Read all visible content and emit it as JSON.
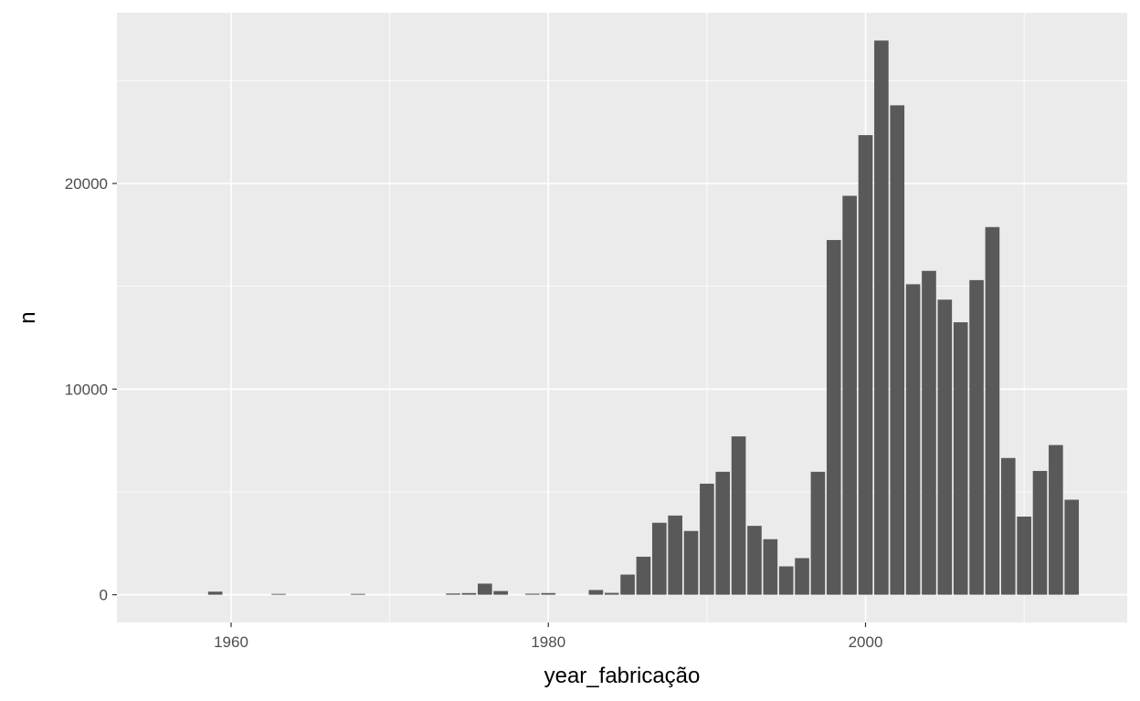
{
  "chart_data": {
    "type": "bar",
    "xlabel": "year_fabricação",
    "ylabel": "n",
    "xlim": [
      1952.8,
      2016.5
    ],
    "ylim": [
      -1350,
      28300
    ],
    "x_ticks": [
      1960,
      1980,
      2000
    ],
    "x_tick_labels": [
      "1960",
      "1980",
      "2000"
    ],
    "y_ticks": [
      0,
      10000,
      20000
    ],
    "y_tick_labels": [
      "0",
      "10000",
      "20000"
    ],
    "x_minor_ticks": [
      1970,
      1990,
      2010
    ],
    "y_minor_ticks": [
      5000,
      15000,
      25000
    ],
    "grid": true,
    "colors": {
      "bar": "#595959",
      "panel": "#ebebeb",
      "grid": "#ffffff"
    },
    "bars": [
      {
        "x": 1959,
        "y": 150
      },
      {
        "x": 1963,
        "y": 40
      },
      {
        "x": 1968,
        "y": 40
      },
      {
        "x": 1974,
        "y": 60
      },
      {
        "x": 1975,
        "y": 80
      },
      {
        "x": 1976,
        "y": 540
      },
      {
        "x": 1977,
        "y": 180
      },
      {
        "x": 1979,
        "y": 50
      },
      {
        "x": 1980,
        "y": 80
      },
      {
        "x": 1983,
        "y": 230
      },
      {
        "x": 1984,
        "y": 90
      },
      {
        "x": 1985,
        "y": 980
      },
      {
        "x": 1986,
        "y": 1850
      },
      {
        "x": 1987,
        "y": 3500
      },
      {
        "x": 1988,
        "y": 3850
      },
      {
        "x": 1989,
        "y": 3100
      },
      {
        "x": 1990,
        "y": 5400
      },
      {
        "x": 1991,
        "y": 5980
      },
      {
        "x": 1992,
        "y": 7700
      },
      {
        "x": 1993,
        "y": 3350
      },
      {
        "x": 1994,
        "y": 2700
      },
      {
        "x": 1995,
        "y": 1380
      },
      {
        "x": 1996,
        "y": 1780
      },
      {
        "x": 1997,
        "y": 5980
      },
      {
        "x": 1998,
        "y": 17250
      },
      {
        "x": 1999,
        "y": 19400
      },
      {
        "x": 2000,
        "y": 22350
      },
      {
        "x": 2001,
        "y": 26950
      },
      {
        "x": 2002,
        "y": 23800
      },
      {
        "x": 2003,
        "y": 15100
      },
      {
        "x": 2004,
        "y": 15750
      },
      {
        "x": 2005,
        "y": 14350
      },
      {
        "x": 2006,
        "y": 13250
      },
      {
        "x": 2007,
        "y": 15300
      },
      {
        "x": 2008,
        "y": 17880
      },
      {
        "x": 2009,
        "y": 6650
      },
      {
        "x": 2010,
        "y": 3800
      },
      {
        "x": 2011,
        "y": 6020
      },
      {
        "x": 2012,
        "y": 7280
      },
      {
        "x": 2013,
        "y": 4620
      }
    ]
  }
}
